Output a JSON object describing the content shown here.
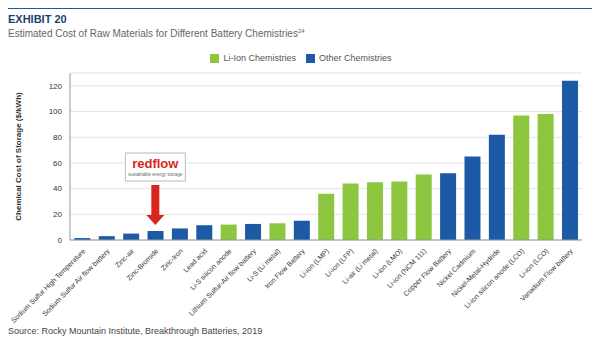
{
  "chart_data": {
    "type": "bar",
    "title": "EXHIBIT 20",
    "subtitle": "Estimated Cost of Raw Materials for Different Battery Chemistries",
    "subtitle_note": "24",
    "y_label": "Chemical Cost of Storage ($/kWh)",
    "source": "Source: Rocky Mountain Institute, Breakthrough Batteries, 2019",
    "categories": [
      "Sodium Sulfur High Temperature",
      "Sodium Sulfur Air flow battery",
      "Zinc-air",
      "Zinc-Bromide",
      "Zinc-Iron",
      "Lead acid",
      "Li-S silicon anode",
      "Lithium Sulfur-Air flow battery",
      "Li-S (Li metal)",
      "Iron Flow Battery",
      "Li-ion (LMP)",
      "Li-ion (LFP)",
      "Li-air (Li metal)",
      "Li-ion (LMO)",
      "Li-ion (NCM 111)",
      "Copper Flow Battery",
      "Nickel Cadmium",
      "Nickel-Metal-Hydride",
      "Li-ion silicon anode (LCO)",
      "Li-ion (LCO)",
      "Vanadium Flow battery"
    ],
    "series": [
      {
        "name": "Li-Ion Chemistries",
        "color": "#8dc63f",
        "values": [
          null,
          null,
          null,
          null,
          null,
          null,
          12,
          null,
          13,
          null,
          36,
          44,
          45,
          45.5,
          51,
          null,
          null,
          null,
          97,
          98,
          null
        ]
      },
      {
        "name": "Other Chemistries",
        "color": "#1c5aa6",
        "values": [
          1.5,
          3,
          5,
          7,
          9,
          11.5,
          null,
          12.5,
          null,
          15,
          null,
          null,
          null,
          null,
          null,
          52,
          65,
          82,
          null,
          null,
          124
        ]
      }
    ],
    "ylim": [
      0,
      130
    ],
    "yticks": [
      0,
      20,
      40,
      60,
      80,
      100,
      120
    ],
    "grid": true,
    "legend": "top",
    "annotations": [
      {
        "text": "redflow",
        "subtext": "sustainable energy storage",
        "category": "Zinc-Bromide"
      }
    ]
  }
}
